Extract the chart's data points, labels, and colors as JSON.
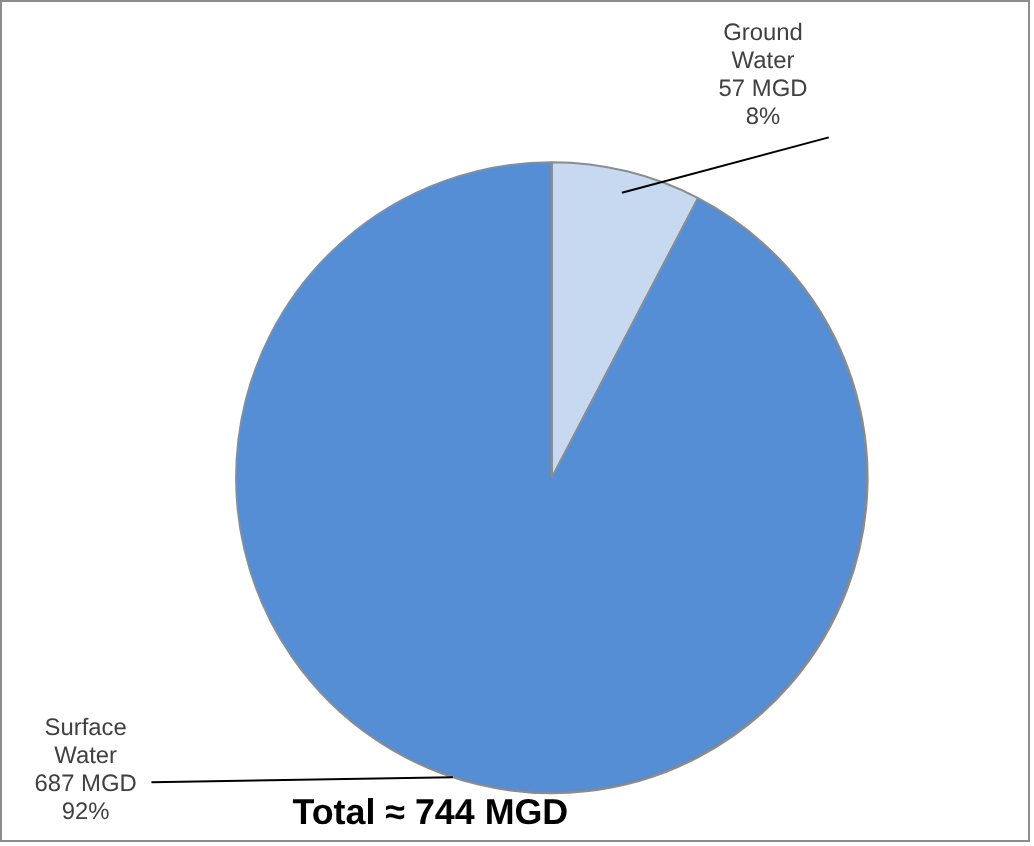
{
  "chart_data": {
    "type": "pie",
    "categories": [
      "Ground Water",
      "Surface Water"
    ],
    "values": [
      57,
      687
    ],
    "colors": [
      "#c6d9f1",
      "#558ed5"
    ],
    "value_labels": [
      "57 MGD\n8%",
      "687 MGD\n92%"
    ],
    "annotations": [
      "Total ≈ 744 MGD"
    ],
    "legend": false
  }
}
